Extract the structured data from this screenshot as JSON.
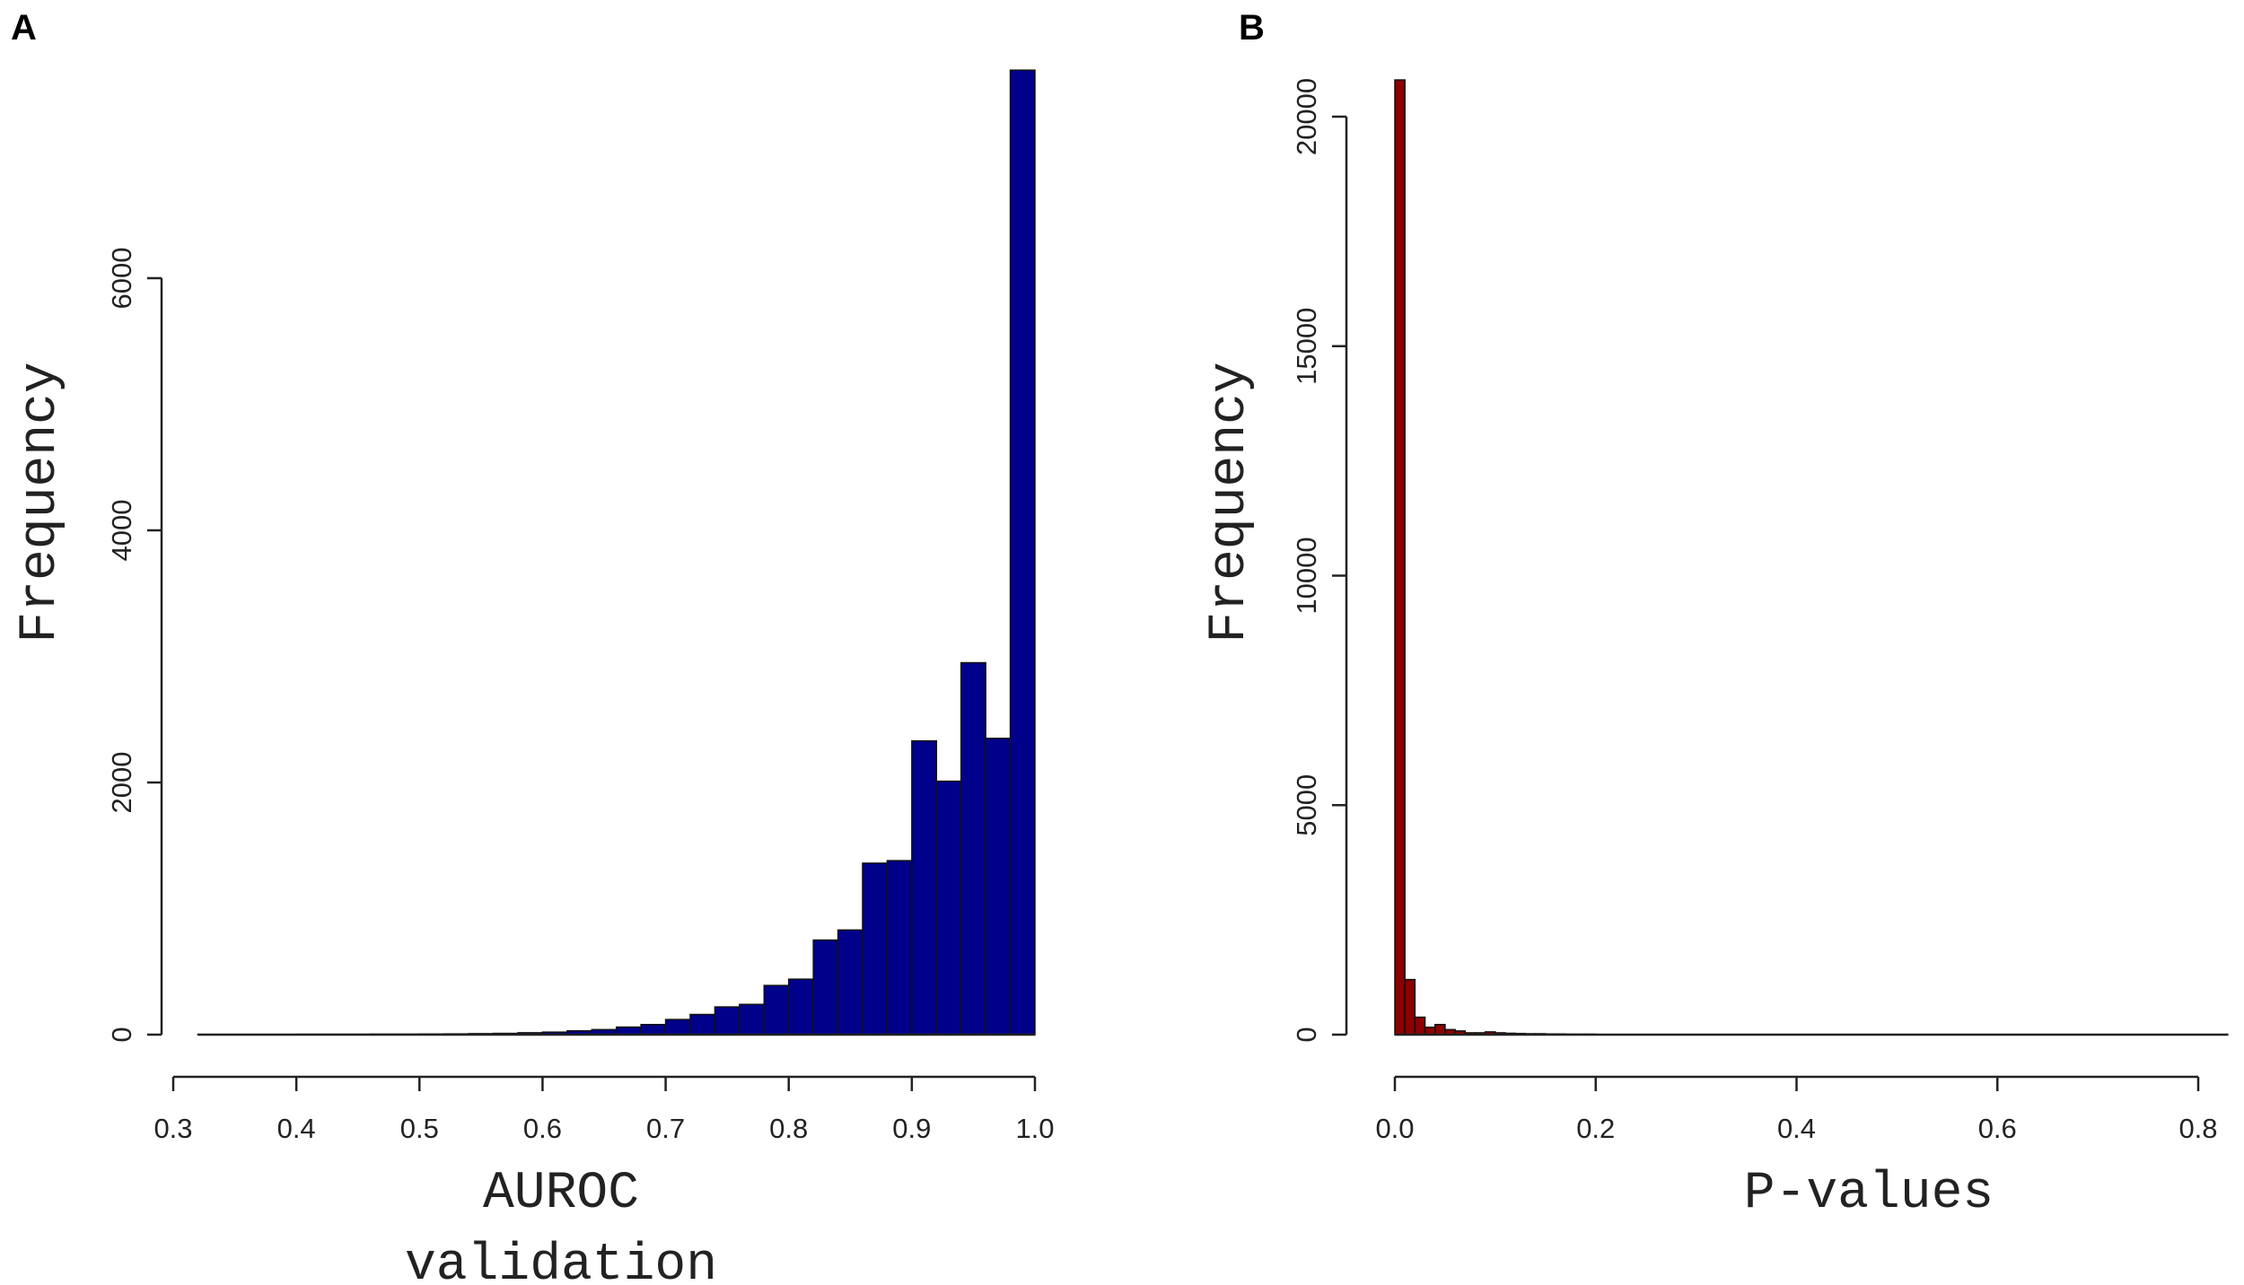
{
  "panels": {
    "A": {
      "letter": "A"
    },
    "B": {
      "letter": "B"
    }
  },
  "chart_data": [
    {
      "type": "bar",
      "panel": "A",
      "xlabel_lines": [
        "AUROC",
        "validation"
      ],
      "ylabel": "Frequency",
      "xlim": [
        0.3,
        1.0
      ],
      "ylim": [
        0,
        6000
      ],
      "x_ticks": [
        "0.3",
        "0.4",
        "0.5",
        "0.6",
        "0.7",
        "0.8",
        "0.9",
        "1.0"
      ],
      "y_ticks": [
        "0",
        "2000",
        "4000",
        "6000"
      ],
      "bar_color": "#00008B",
      "bin_width": 0.02,
      "bin_starts": [
        0.32,
        0.34,
        0.36,
        0.38,
        0.4,
        0.42,
        0.44,
        0.46,
        0.48,
        0.5,
        0.52,
        0.54,
        0.56,
        0.58,
        0.6,
        0.62,
        0.64,
        0.66,
        0.68,
        0.7,
        0.72,
        0.74,
        0.76,
        0.78,
        0.8,
        0.82,
        0.84,
        0.86,
        0.88,
        0.9,
        0.92,
        0.94,
        0.96,
        0.98
      ],
      "values": [
        2,
        2,
        2,
        2,
        3,
        3,
        3,
        4,
        4,
        5,
        6,
        8,
        10,
        15,
        20,
        30,
        40,
        60,
        80,
        120,
        160,
        220,
        240,
        390,
        440,
        750,
        830,
        1360,
        1380,
        2330,
        2010,
        2950,
        2350,
        7650
      ]
    },
    {
      "type": "bar",
      "panel": "B",
      "xlabel_lines": [
        "P-values"
      ],
      "ylabel": "Frequency",
      "xlim": [
        0.0,
        0.8
      ],
      "ylim": [
        0,
        20000
      ],
      "x_ticks": [
        "0.0",
        "0.2",
        "0.4",
        "0.6",
        "0.8"
      ],
      "y_ticks": [
        "0",
        "5000",
        "10000",
        "15000",
        "20000"
      ],
      "bar_color": "#8B0000",
      "bin_width": 0.01,
      "bin_starts": [
        0.0,
        0.01,
        0.02,
        0.03,
        0.04,
        0.05,
        0.06,
        0.07,
        0.08,
        0.09,
        0.1,
        0.11,
        0.12,
        0.13,
        0.14,
        0.15,
        0.16,
        0.17,
        0.18,
        0.19
      ],
      "values": [
        20800,
        1200,
        380,
        160,
        220,
        110,
        80,
        40,
        40,
        60,
        40,
        30,
        25,
        20,
        20,
        15,
        15,
        10,
        10,
        10
      ],
      "baseline_extends_to": 0.83
    }
  ]
}
